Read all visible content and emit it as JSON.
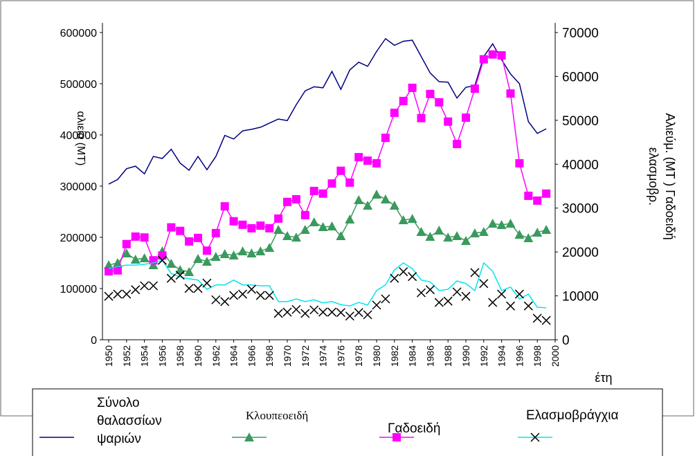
{
  "chart_data": {
    "type": "line",
    "x": [
      1950,
      1951,
      1952,
      1953,
      1954,
      1955,
      1956,
      1957,
      1958,
      1959,
      1960,
      1961,
      1962,
      1963,
      1964,
      1965,
      1966,
      1967,
      1968,
      1969,
      1970,
      1971,
      1972,
      1973,
      1974,
      1975,
      1976,
      1977,
      1978,
      1979,
      1980,
      1981,
      1982,
      1983,
      1984,
      1985,
      1986,
      1987,
      1988,
      1989,
      1990,
      1991,
      1992,
      1993,
      1994,
      1995,
      1996,
      1997,
      1998,
      1999
    ],
    "xlim": [
      1949.3,
      2000
    ],
    "xticks": [
      1950,
      1952,
      1954,
      1956,
      1958,
      1960,
      1962,
      1964,
      1966,
      1968,
      1970,
      1972,
      1974,
      1976,
      1978,
      1980,
      1982,
      1984,
      1986,
      1988,
      1990,
      1992,
      1994,
      1996,
      1998,
      2000
    ],
    "x_label": "έτη",
    "y_label": "αλιεία (MT)",
    "y2_label": [
      "Αλιεύμ. (MT ) Γαδοειδή",
      "ελασμοβρ."
    ],
    "ylim": [
      0,
      600000
    ],
    "yticks": [
      0,
      100000,
      200000,
      300000,
      400000,
      500000,
      600000
    ],
    "y2lim": [
      0,
      70000
    ],
    "y2ticks": [
      0,
      10000,
      20000,
      30000,
      40000,
      50000,
      60000,
      70000
    ],
    "series": [
      {
        "name": "Σύνολο θαλασσίων ψαριών",
        "color": "#000080",
        "values": [
          304000,
          313000,
          334000,
          339000,
          324000,
          358000,
          354000,
          372000,
          345000,
          331000,
          358000,
          332000,
          358000,
          399000,
          392000,
          408000,
          411000,
          415000,
          423000,
          431000,
          428000,
          459000,
          486000,
          494000,
          492000,
          524000,
          489000,
          527000,
          542000,
          534000,
          563000,
          588000,
          575000,
          583000,
          585000,
          553000,
          521000,
          504000,
          503000,
          472000,
          493000,
          496000,
          553000,
          578000,
          547000,
          519000,
          500000,
          426000,
          403000,
          412000
        ]
      },
      {
        "name": "Κλουπεοειδή",
        "color": "#3a9a5e",
        "marker": "triangle",
        "values": [
          145900,
          150000,
          168900,
          156700,
          159400,
          145900,
          172900,
          148600,
          136500,
          132400,
          158100,
          152700,
          162100,
          167500,
          164800,
          172900,
          168900,
          172900,
          179700,
          214800,
          202700,
          199900,
          214800,
          229700,
          220200,
          221600,
          202700,
          235100,
          272900,
          262100,
          283700,
          274300,
          262100,
          233700,
          236400,
          210800,
          201300,
          213500,
          199900,
          202700,
          193200,
          208100,
          210800,
          227000,
          224300,
          227000,
          205400,
          198600,
          209400,
          214800
        ]
      },
      {
        "name": "Γαδοειδή",
        "color": "#ff00ff",
        "marker": "square",
        "axis": "y2",
        "values": [
          15600,
          15800,
          21800,
          23500,
          23300,
          18100,
          19200,
          25600,
          24800,
          22400,
          23200,
          20300,
          24300,
          30400,
          27000,
          26200,
          25400,
          26000,
          25400,
          27600,
          31400,
          32000,
          28400,
          33900,
          33300,
          35600,
          38500,
          35800,
          41600,
          40800,
          40200,
          46000,
          51700,
          54400,
          57400,
          50500,
          56000,
          54100,
          49700,
          44600,
          50600,
          57200,
          63900,
          65000,
          64800,
          56100,
          40200,
          32800,
          31700,
          33300
        ]
      },
      {
        "name": "Ελασμοβράγχια",
        "color": "#00e5ee",
        "axis": "y2",
        "values": [
          16200,
          16700,
          17000,
          17000,
          17200,
          17500,
          18100,
          15100,
          14300,
          13900,
          13600,
          11500,
          12500,
          12500,
          13600,
          12500,
          12500,
          12300,
          12300,
          8700,
          8700,
          9300,
          8700,
          9100,
          8400,
          8700,
          8000,
          7700,
          8500,
          7900,
          11200,
          12500,
          15900,
          17500,
          16200,
          13600,
          13200,
          11200,
          11500,
          13400,
          12800,
          11200,
          17500,
          15600,
          11200,
          12000,
          9300,
          10400,
          7400,
          7300
        ]
      },
      {
        "color": "#000000",
        "marker": "x",
        "axis": "y2",
        "values": [
          9900,
          10400,
          10400,
          11400,
          12300,
          12300,
          18100,
          14000,
          14700,
          11700,
          11700,
          12900,
          9100,
          8700,
          10100,
          10400,
          11500,
          10100,
          10100,
          6000,
          6300,
          6900,
          6000,
          6800,
          6300,
          6300,
          6200,
          5400,
          6200,
          5700,
          7900,
          9300,
          14000,
          15500,
          14400,
          10700,
          11400,
          8500,
          8800,
          10900,
          9900,
          15300,
          12800,
          8500,
          10400,
          7700,
          10400,
          7700,
          4900,
          4400
        ]
      }
    ]
  }
}
